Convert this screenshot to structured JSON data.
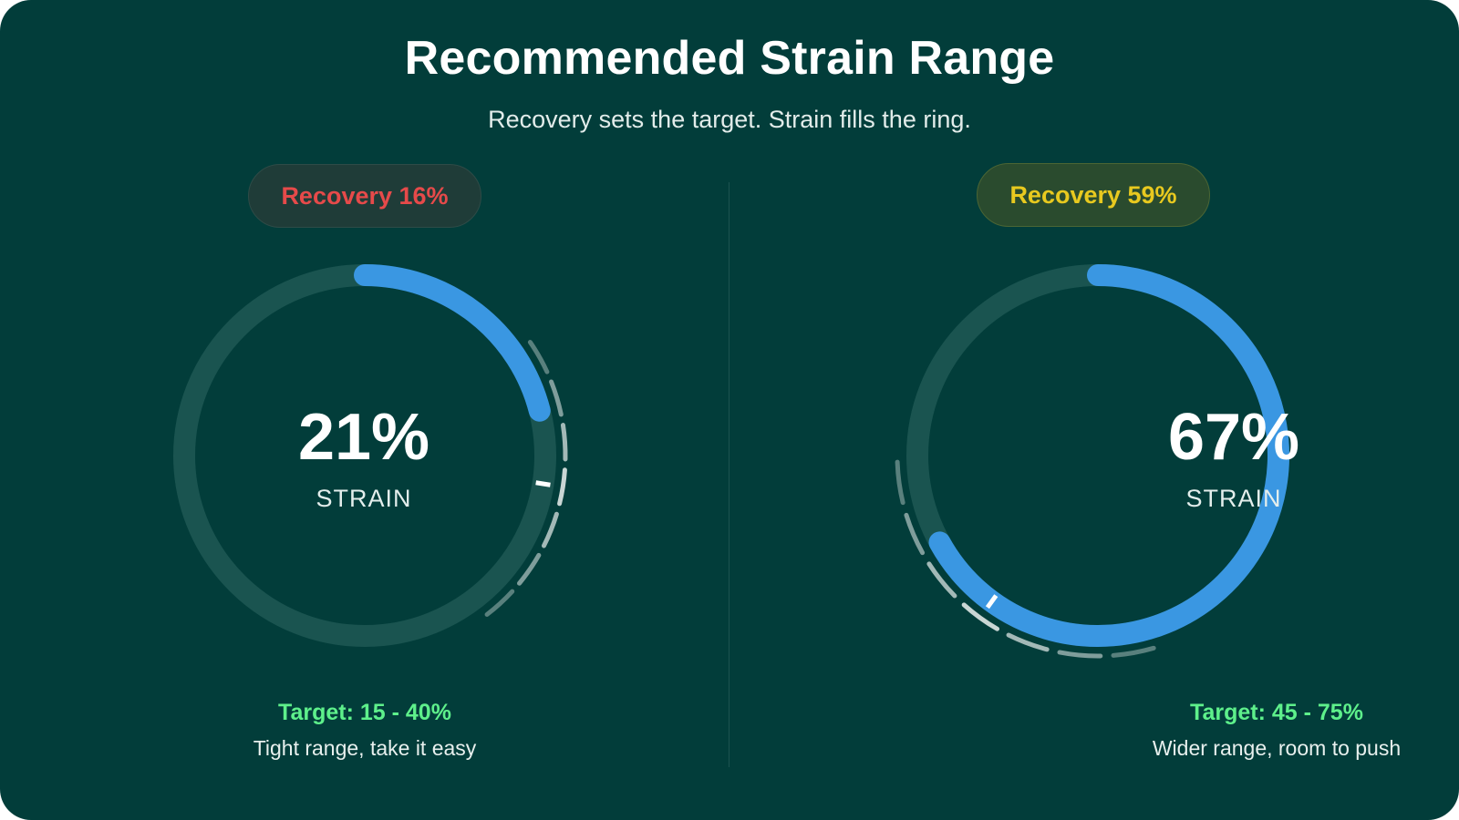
{
  "header": {
    "title": "Recommended Strain Range",
    "subtitle": "Recovery sets the target. Strain fills the ring."
  },
  "colors": {
    "background": "#023d3a",
    "ring_track": "#1a5450",
    "strain_fill": "#3a97e2",
    "recovery_low": "#e64a4a",
    "recovery_mid": "#e8c91f",
    "target_text": "#5ef08b",
    "range_marks": "#c9d6d4"
  },
  "panels": [
    {
      "recovery_label": "Recovery 16%",
      "recovery_color": "#e64a4a",
      "strain_value": "21%",
      "strain_label": "STRAIN",
      "strain_fraction": 0.21,
      "target_low_fraction": 0.15,
      "target_high_fraction": 0.4,
      "target_text": "Target: 15 - 40%",
      "note": "Tight range, take it easy"
    },
    {
      "recovery_label": "Recovery 59%",
      "recovery_color": "#e8c91f",
      "strain_value": "67%",
      "strain_label": "STRAIN",
      "strain_fraction": 0.67,
      "target_low_fraction": 0.45,
      "target_high_fraction": 0.75,
      "target_text": "Target: 45 - 75%",
      "note": "Wider range, room to push"
    }
  ]
}
